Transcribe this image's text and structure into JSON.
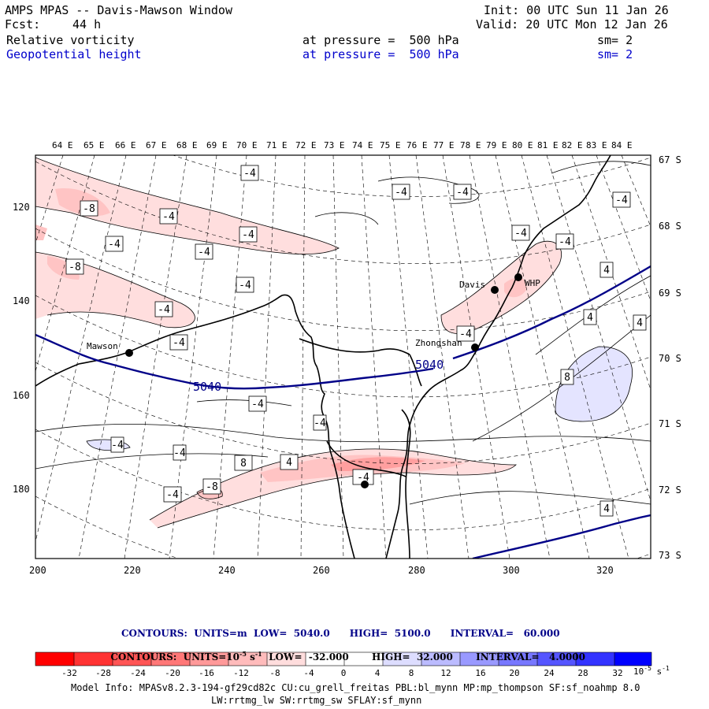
{
  "header": {
    "title": "AMPS MPAS -- Davis-Mawson Window",
    "fcst_label": "Fcst:",
    "fcst_value": "44 h",
    "init": "Init: 00 UTC Sun 11 Jan 26",
    "valid": "Valid: 20 UTC Mon 12 Jan 26",
    "fields": [
      {
        "name": "Relative vorticity",
        "level": "at pressure =  500 hPa",
        "sm": "sm= 2",
        "color": "#000000"
      },
      {
        "name": "Geopotential height",
        "level": "at pressure =  500 hPa",
        "sm": "sm= 2",
        "color": "#0000cc"
      }
    ]
  },
  "map": {
    "top_lon_labels": [
      "64 E",
      "65 E",
      "66 E",
      "67 E",
      "68 E",
      "69 E",
      "70 E",
      "71 E",
      "72 E",
      "73 E",
      "74 E",
      "75 E",
      "76 E",
      "77 E",
      "78 E",
      "79 E",
      "80 E",
      "81 E",
      "82 E",
      "83 E",
      "84 E"
    ],
    "right_lat_labels": [
      "67 S",
      "68 S",
      "69 S",
      "70 S",
      "71 S",
      "72 S",
      "73 S"
    ],
    "left_y_labels": [
      "120",
      "140",
      "160",
      "180"
    ],
    "bottom_x_labels": [
      "200",
      "220",
      "240",
      "260",
      "280",
      "300",
      "320"
    ],
    "stations": [
      {
        "name": "Mawson"
      },
      {
        "name": "Davis"
      },
      {
        "name": "WHP"
      },
      {
        "name": "Zhongshan"
      },
      {
        "name": ""
      }
    ],
    "height_labels": [
      "5040",
      "5040"
    ],
    "vort_labels": [
      "-4",
      "-8",
      "-4",
      "-4",
      "-4",
      "-4",
      "-4",
      "-8",
      "-4",
      "-4",
      "-4",
      "-4",
      "-4",
      "-4",
      "-4",
      "-4",
      "-4",
      "-4",
      "4",
      "4",
      "4",
      "8",
      "-4",
      "-4",
      "8",
      "4",
      "-4",
      "-8",
      "-4",
      "-8",
      "-4",
      "-8",
      "-4",
      "4",
      "4"
    ]
  },
  "colorbar": {
    "contour_line_1": "CONTOURS:  UNITS=m  LOW=  5040.0      HIGH=  5100.0      INTERVAL=   60.000",
    "contour_line_2": "CONTOURS:  UNITS=10",
    "contour_line_2b": "-5",
    "contour_line_2c": " s",
    "contour_line_2d": "-1",
    "contour_line_2e": "  LOW=  -32.000       HIGH=  32.000       INTERVAL=   4.0000",
    "tick_labels": [
      "-32",
      "-28",
      "-24",
      "-20",
      "-16",
      "-12",
      "-8",
      "-4",
      "0",
      "4",
      "8",
      "12",
      "16",
      "20",
      "24",
      "28",
      "32"
    ],
    "units_label": "10",
    "units_exp": "-5",
    "units_s": " s",
    "units_s_exp": "-1",
    "colors": [
      "#ff0000",
      "#ff3333",
      "#ff5555",
      "#ff7777",
      "#ff9999",
      "#ffbbbb",
      "#ffdddd",
      "#ffffff",
      "#ffffff",
      "#ddddff",
      "#bbbbff",
      "#9999ff",
      "#7777ff",
      "#5555ff",
      "#3333ff",
      "#0000ff"
    ]
  },
  "footer": {
    "model_info": "Model Info: MPASv8.2.3-194-gf29cd82c CU:cu_grell_freitas PBL:bl_mynn MP:mp_thompson SF:sf_noahmp 8.0",
    "model_info_2": "LW:rrtmg_lw SW:rrtmg_sw SFLAY:sf_mynn"
  }
}
